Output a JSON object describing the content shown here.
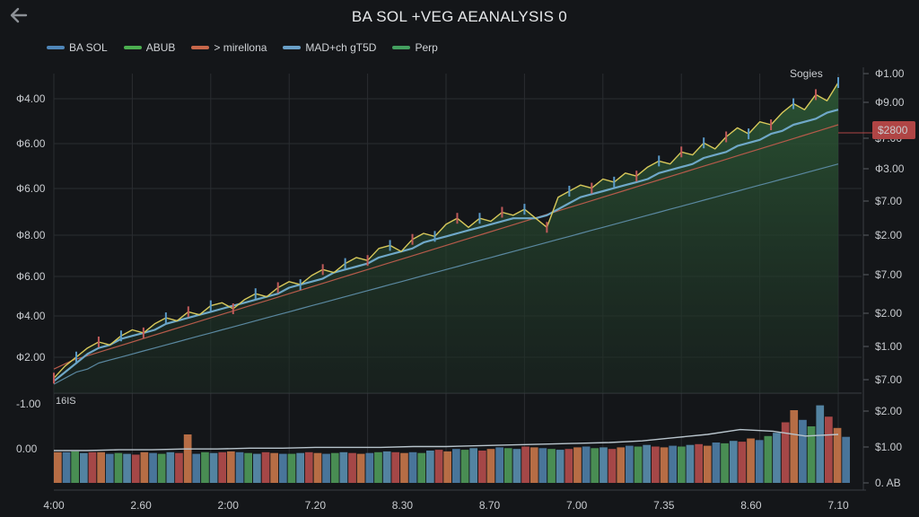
{
  "title": "BA SOL +VEG AEANALYSIS  0",
  "legend": [
    {
      "label": "BA SOL",
      "color": "#4f86b8"
    },
    {
      "label": "ABUB",
      "color": "#4caf50"
    },
    {
      "label": "> mirellona",
      "color": "#c8674a"
    },
    {
      "label": "MAD+ch gT5D",
      "color": "#6aa0c8"
    },
    {
      "label": "Perp",
      "color": "#44a060"
    }
  ],
  "icons": {
    "back": "arrow-left-icon"
  },
  "colors": {
    "background": "#141619",
    "grid": "#2a2d31",
    "area": "#1f3a26",
    "price_line": "#d8c85a",
    "ma_line": "#6fa8c8",
    "ma2_line": "#b55a4a",
    "trend_line": "#5a88a0",
    "highlight": "#b04545"
  },
  "chart_data": [
    {
      "type": "line",
      "title": "BA SOL +VEG AEANALYSIS  0",
      "left_tick_labels": [
        "Ф4.00",
        "Ф6.00",
        "Ф6.00",
        "Ф8.00",
        "Ф6.00",
        "Ф4.00",
        "Ф2.00"
      ],
      "right_tick_labels": [
        "Ф1.00",
        "Ф9.00",
        "$7.00",
        "Ф3.00",
        "$7.00",
        "$2.00",
        "$7.00",
        "$2.00",
        "$1.00",
        "$7.00"
      ],
      "highlight_label": "$2800",
      "annotation": "Sogies",
      "x_labels": [
        "4:00",
        "2.60",
        "2:00",
        "7.20",
        "8.30",
        "8.70",
        "7.00",
        "7.35",
        "8.60",
        "7.10"
      ],
      "grid": true,
      "series": [
        {
          "values": [
            0.02,
            0.06,
            0.09,
            0.12,
            0.14,
            0.13,
            0.16,
            0.18,
            0.17,
            0.2,
            0.22,
            0.21,
            0.24,
            0.23,
            0.26,
            0.27,
            0.25,
            0.28,
            0.3,
            0.29,
            0.32,
            0.34,
            0.33,
            0.36,
            0.38,
            0.37,
            0.4,
            0.42,
            0.41,
            0.45,
            0.46,
            0.44,
            0.48,
            0.5,
            0.49,
            0.53,
            0.55,
            0.52,
            0.55,
            0.54,
            0.57,
            0.56,
            0.58,
            0.55,
            0.52,
            0.62,
            0.64,
            0.66,
            0.65,
            0.68,
            0.67,
            0.7,
            0.69,
            0.72,
            0.74,
            0.73,
            0.77,
            0.76,
            0.8,
            0.78,
            0.82,
            0.85,
            0.83,
            0.87,
            0.86,
            0.9,
            0.93,
            0.91,
            0.96,
            0.94,
            1.0
          ]
        },
        {
          "values": [
            0.01,
            0.04,
            0.07,
            0.1,
            0.12,
            0.13,
            0.15,
            0.16,
            0.17,
            0.18,
            0.2,
            0.21,
            0.22,
            0.23,
            0.24,
            0.25,
            0.26,
            0.27,
            0.28,
            0.29,
            0.3,
            0.32,
            0.33,
            0.34,
            0.35,
            0.37,
            0.38,
            0.39,
            0.4,
            0.42,
            0.43,
            0.44,
            0.45,
            0.47,
            0.48,
            0.49,
            0.5,
            0.51,
            0.52,
            0.53,
            0.54,
            0.55,
            0.55,
            0.55,
            0.56,
            0.58,
            0.6,
            0.62,
            0.63,
            0.64,
            0.65,
            0.66,
            0.67,
            0.68,
            0.7,
            0.71,
            0.72,
            0.73,
            0.75,
            0.76,
            0.77,
            0.79,
            0.8,
            0.81,
            0.83,
            0.84,
            0.86,
            0.87,
            0.88,
            0.9,
            0.91
          ]
        },
        {
          "values": [
            0.0,
            0.02,
            0.04,
            0.05,
            0.07,
            0.08,
            0.09,
            0.1,
            0.11,
            0.12,
            0.13,
            0.14,
            0.15,
            0.16,
            0.17,
            0.18,
            0.19,
            0.2,
            0.21,
            0.22,
            0.23,
            0.24,
            0.25,
            0.26,
            0.27,
            0.28,
            0.29,
            0.3,
            0.31,
            0.32,
            0.33,
            0.34,
            0.35,
            0.36,
            0.37,
            0.38,
            0.39,
            0.4,
            0.41,
            0.42,
            0.43,
            0.44,
            0.45,
            0.46,
            0.47,
            0.48,
            0.49,
            0.5,
            0.51,
            0.52,
            0.53,
            0.54,
            0.55,
            0.56,
            0.57,
            0.58,
            0.59,
            0.6,
            0.61,
            0.62,
            0.63,
            0.64,
            0.65,
            0.66,
            0.67,
            0.68,
            0.69,
            0.7,
            0.71,
            0.72,
            0.73
          ]
        },
        {
          "values": [
            0.05,
            0.08,
            0.1,
            0.12,
            0.14,
            0.16,
            0.18,
            0.2,
            0.22,
            0.24,
            0.26,
            0.28,
            0.3,
            0.32,
            0.34,
            0.36,
            0.38,
            0.4,
            0.42,
            0.44,
            0.46,
            0.48,
            0.5,
            0.52,
            0.54,
            0.56,
            0.58,
            0.6,
            0.62,
            0.64,
            0.66,
            0.68,
            0.7,
            0.72,
            0.74,
            0.76,
            0.78,
            0.8,
            0.82,
            0.84,
            0.86
          ]
        }
      ]
    },
    {
      "type": "bar",
      "left_tick_labels": [
        "-1.00",
        "0.00"
      ],
      "right_tick_labels": [
        "$2.00",
        "$1.00",
        "0. AB"
      ],
      "annotation": "16IS",
      "values": [
        0.38,
        0.38,
        0.39,
        0.37,
        0.38,
        0.38,
        0.36,
        0.37,
        0.36,
        0.35,
        0.38,
        0.37,
        0.36,
        0.38,
        0.37,
        0.6,
        0.36,
        0.38,
        0.37,
        0.38,
        0.39,
        0.38,
        0.37,
        0.36,
        0.38,
        0.37,
        0.36,
        0.36,
        0.37,
        0.38,
        0.37,
        0.36,
        0.37,
        0.38,
        0.37,
        0.36,
        0.37,
        0.38,
        0.39,
        0.38,
        0.37,
        0.38,
        0.37,
        0.4,
        0.41,
        0.39,
        0.42,
        0.41,
        0.43,
        0.4,
        0.42,
        0.44,
        0.43,
        0.42,
        0.45,
        0.44,
        0.43,
        0.42,
        0.41,
        0.42,
        0.44,
        0.45,
        0.43,
        0.44,
        0.42,
        0.44,
        0.46,
        0.45,
        0.47,
        0.45,
        0.44,
        0.46,
        0.45,
        0.47,
        0.48,
        0.46,
        0.5,
        0.49,
        0.52,
        0.51,
        0.55,
        0.53,
        0.58,
        0.62,
        0.75,
        0.9,
        0.78,
        0.7,
        0.96,
        0.82,
        0.68,
        0.57
      ],
      "line_values": [
        0.4,
        0.4,
        0.41,
        0.41,
        0.42,
        0.42,
        0.43,
        0.43,
        0.44,
        0.44,
        0.44,
        0.45,
        0.45,
        0.46,
        0.47,
        0.48,
        0.49,
        0.5,
        0.52,
        0.56,
        0.6,
        0.66,
        0.64,
        0.58,
        0.6
      ]
    }
  ]
}
